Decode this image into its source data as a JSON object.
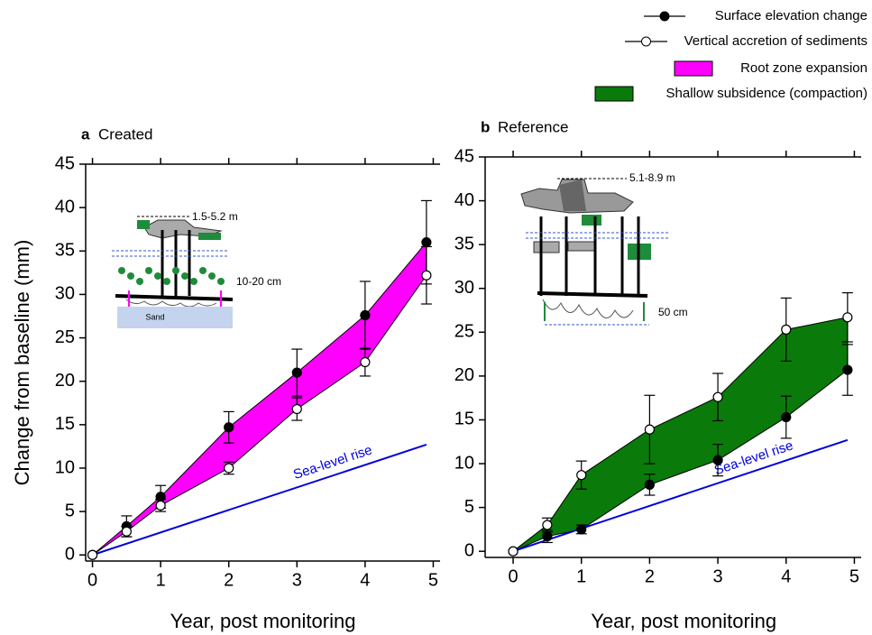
{
  "chart_data": [
    {
      "type": "line",
      "panel": "a",
      "title": "Created",
      "x": [
        0,
        0.5,
        1,
        2,
        3,
        4,
        4.9
      ],
      "series": [
        {
          "name": "Surface elevation change",
          "color": "#000000",
          "marker": "filled",
          "values": [
            0,
            3.3,
            6.7,
            14.7,
            21,
            27.6,
            36
          ],
          "errors": [
            0,
            1.2,
            1.3,
            1.8,
            2.7,
            3.9,
            4.8
          ]
        },
        {
          "name": "Vertical accretion of sediments",
          "color": "#000000",
          "marker": "open",
          "values": [
            0,
            2.7,
            5.7,
            10,
            16.8,
            22.2,
            32.2
          ],
          "errors": [
            0,
            0.6,
            0.7,
            0.7,
            1.3,
            1.6,
            3.3
          ]
        }
      ],
      "band": {
        "name": "Root zone expansion",
        "color": "#ff00ff"
      },
      "trend": {
        "name": "Sea-level rise",
        "color": "#0000dd",
        "x": [
          0,
          4.9
        ],
        "values": [
          0,
          12.7
        ]
      },
      "inset_labels": [
        "1.5-5.2 m",
        "10-20 cm",
        "Sand"
      ],
      "xlabel": "Year, post monitoring",
      "ylabel": "Change from baseline (mm)",
      "xlim": [
        -0.1,
        5.1
      ],
      "ylim": [
        -0.7,
        45
      ],
      "xticks": [
        0,
        1,
        2,
        3,
        4,
        5
      ],
      "yticks": [
        0,
        5,
        10,
        15,
        20,
        25,
        30,
        35,
        40,
        45
      ]
    },
    {
      "type": "line",
      "panel": "b",
      "title": "Reference",
      "x": [
        0,
        0.5,
        1,
        2,
        3,
        4,
        4.9
      ],
      "series": [
        {
          "name": "Surface elevation change",
          "color": "#000000",
          "marker": "filled",
          "values": [
            0,
            1.7,
            2.5,
            7.6,
            10.4,
            15.3,
            20.7
          ],
          "errors": [
            0,
            0.7,
            0.5,
            1.2,
            1.8,
            2.4,
            2.9
          ]
        },
        {
          "name": "Vertical accretion of sediments",
          "color": "#000000",
          "marker": "open",
          "values": [
            0,
            3.0,
            8.7,
            13.9,
            17.6,
            25.3,
            26.7
          ],
          "errors": [
            0,
            0.8,
            1.6,
            3.9,
            2.7,
            3.6,
            2.8
          ]
        }
      ],
      "band": {
        "name": "Shallow subsidence (compaction)",
        "color": "#0a7a0a"
      },
      "trend": {
        "name": "Sea-level rise",
        "color": "#0000dd",
        "x": [
          0,
          4.9
        ],
        "values": [
          0,
          12.7
        ]
      },
      "inset_labels": [
        "5.1-8.9 m",
        "50 cm"
      ],
      "xlabel": "Year, post monitoring",
      "xlim": [
        -0.41,
        5.1
      ],
      "ylim": [
        -0.7,
        45
      ],
      "xticks": [
        0,
        1,
        2,
        3,
        4,
        5
      ],
      "yticks": [
        0,
        5,
        10,
        15,
        20,
        25,
        30,
        35,
        40,
        45
      ]
    }
  ]
}
